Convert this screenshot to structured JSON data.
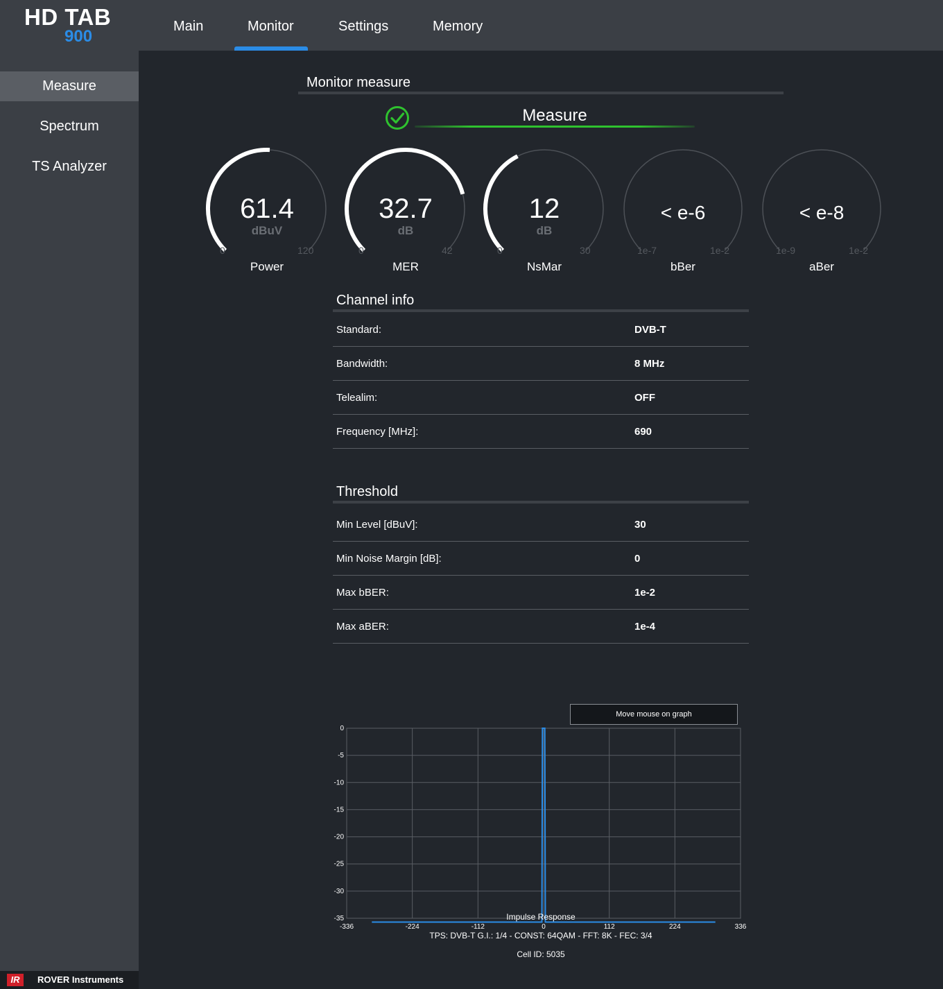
{
  "app": {
    "logo_top": "HD TAB",
    "logo_num": "900"
  },
  "nav": {
    "tabs": [
      "Main",
      "Monitor",
      "Settings",
      "Memory"
    ],
    "active": "Monitor"
  },
  "sidebar": {
    "items": [
      "Measure",
      "Spectrum",
      "TS Analyzer"
    ],
    "active": "Measure"
  },
  "brand": {
    "logo": "IR",
    "name": "ROVER Instruments"
  },
  "monitor": {
    "title": "Monitor measure",
    "status_label": "Measure",
    "status": "ok",
    "gauges": [
      {
        "name": "Power",
        "value": "61.4",
        "unit": "dBuV",
        "min": "0",
        "max": "120",
        "fraction": 0.51
      },
      {
        "name": "MER",
        "value": "32.7",
        "unit": "dB",
        "min": "0",
        "max": "42",
        "fraction": 0.78
      },
      {
        "name": "NsMar",
        "value": "12",
        "unit": "dB",
        "min": "0",
        "max": "30",
        "fraction": 0.4
      },
      {
        "name": "bBer",
        "value": "< e-6",
        "unit": "",
        "min": "1e-7",
        "max": "1e-2",
        "fraction": 0
      },
      {
        "name": "aBer",
        "value": "< e-8",
        "unit": "",
        "min": "1e-9",
        "max": "1e-2",
        "fraction": 0
      }
    ]
  },
  "channel_info": {
    "title": "Channel info",
    "rows": [
      {
        "key": "Standard:",
        "value": "DVB-T"
      },
      {
        "key": "Bandwidth:",
        "value": "8 MHz"
      },
      {
        "key": "Telealim:",
        "value": "OFF"
      },
      {
        "key": "Frequency [MHz]:",
        "value": "690"
      }
    ]
  },
  "threshold": {
    "title": "Threshold",
    "rows": [
      {
        "key": "Min Level [dBuV]:",
        "value": "30"
      },
      {
        "key": "Min Noise Margin [dB]:",
        "value": "0"
      },
      {
        "key": "Max bBER:",
        "value": "1e-2"
      },
      {
        "key": "Max aBER:",
        "value": "1e-4"
      }
    ]
  },
  "chart_data": {
    "type": "line",
    "title": "Impulse Response",
    "x_ticks": [
      "-336",
      "-224",
      "-112",
      "0",
      "112",
      "224",
      "336"
    ],
    "y_ticks": [
      "0",
      "-5",
      "-10",
      "-15",
      "-20",
      "-25",
      "-30",
      "-35"
    ],
    "xlim": [
      -336,
      336
    ],
    "ylim": [
      -35,
      0
    ],
    "grid": true,
    "series": [
      {
        "values_x": [
          -293,
          -3,
          -2,
          2,
          3,
          293
        ],
        "values_y": [
          -36,
          -36,
          0,
          0,
          -36,
          -36
        ]
      }
    ],
    "color": "#2b8ce6",
    "tooltip": "Move mouse on graph"
  },
  "footer": {
    "tps": "TPS: DVB-T G.I.: 1/4 - CONST: 64QAM - FFT: 8K - FEC: 3/4",
    "cell_id": "Cell ID: 5035"
  }
}
